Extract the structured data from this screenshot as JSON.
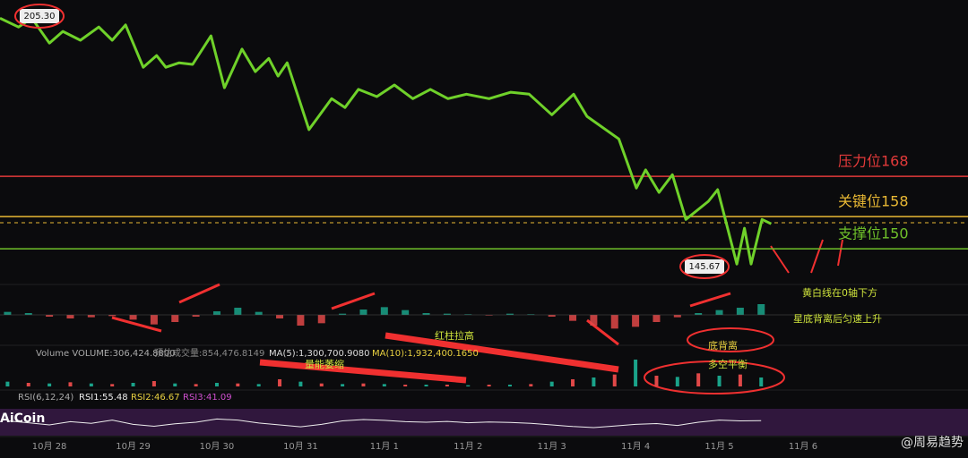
{
  "chart_data": {
    "type": "line",
    "color": "#6fd12a",
    "x": [
      -0.59,
      -0.37,
      -0.21,
      0,
      0.16,
      0.37,
      0.59,
      0.75,
      0.91,
      1.12,
      1.28,
      1.39,
      1.55,
      1.71,
      1.93,
      2.09,
      2.3,
      2.46,
      2.62,
      2.73,
      2.84,
      3.1,
      3.37,
      3.53,
      3.69,
      3.91,
      4.12,
      4.34,
      4.55,
      4.76,
      4.98,
      5.25,
      5.51,
      5.73,
      6.0,
      6.26,
      6.42,
      6.8,
      7.01,
      7.12,
      7.28,
      7.44,
      7.6,
      7.87,
      7.98,
      8.14,
      8.21,
      8.3,
      8.38,
      8.51,
      8.62
    ],
    "values": [
      207.3,
      205.1,
      207.3,
      201.1,
      204.0,
      201.8,
      205.1,
      201.8,
      205.6,
      195.1,
      198.0,
      195.1,
      196.2,
      195.8,
      202.9,
      190.0,
      199.6,
      194.0,
      197.3,
      192.9,
      196.2,
      179.6,
      187.3,
      185.1,
      189.6,
      187.8,
      190.7,
      187.3,
      189.6,
      187.3,
      188.4,
      187.3,
      188.9,
      188.4,
      183.3,
      188.4,
      182.9,
      177.3,
      165.1,
      169.6,
      164.0,
      168.4,
      157.3,
      161.8,
      164.7,
      151.8,
      146.2,
      155.1,
      146.2,
      157.3,
      156.2
    ],
    "xlim": [
      -0.59,
      10.97
    ],
    "ylim": [
      141.8,
      211.8
    ],
    "xticks": [
      {
        "value": 0,
        "label": "10月 28"
      },
      {
        "value": 1,
        "label": "10月 29"
      },
      {
        "value": 2,
        "label": "10月 30"
      },
      {
        "value": 3,
        "label": "10月 31"
      },
      {
        "value": 4,
        "label": "11月 1"
      },
      {
        "value": 5,
        "label": "11月 2"
      },
      {
        "value": 6,
        "label": "11月 3"
      },
      {
        "value": 7,
        "label": "11月 4"
      },
      {
        "value": 8,
        "label": "11月 5"
      },
      {
        "value": 9,
        "label": "11月 6"
      }
    ],
    "ref_lines": [
      {
        "value": 168,
        "label": "压力位168",
        "color": "#e43a3a"
      },
      {
        "value": 158,
        "label": "关键位158",
        "color": "#e8b834"
      },
      {
        "value": 150,
        "label": "支撑位150",
        "color": "#6fc02a"
      }
    ],
    "extremes": [
      {
        "value": 205.3,
        "label": "205.30"
      },
      {
        "value": 145.67,
        "label": "145.67"
      }
    ],
    "annotations": [
      "黄白线在0轴下方",
      "星底背离后匀速上升",
      "底背离",
      "多空平衡",
      "红柱拉高",
      "量能萎缩"
    ],
    "indicator_x": [
      -0.5,
      -0.25,
      0,
      0.25,
      0.5,
      0.75,
      1,
      1.25,
      1.5,
      1.75,
      2,
      2.25,
      2.5,
      2.75,
      3,
      3.25,
      3.5,
      3.75,
      4,
      4.25,
      4.5,
      4.75,
      5,
      5.25,
      5.5,
      5.75,
      6,
      6.25,
      6.5,
      6.75,
      7,
      7.25,
      7.5,
      7.75,
      8,
      8.25,
      8.5
    ],
    "macd": {
      "ylim": [
        -3,
        3
      ],
      "values": [
        0.5,
        0.3,
        -0.3,
        -0.6,
        -0.4,
        -0.2,
        -0.8,
        -1.6,
        -1.2,
        -0.3,
        0.6,
        1.2,
        0.5,
        -0.6,
        -1.8,
        -1.4,
        0.2,
        0.9,
        1.3,
        0.8,
        0.3,
        0.2,
        0.1,
        -0.1,
        0.2,
        0.1,
        -0.3,
        -1.0,
        -1.8,
        -2.3,
        -2.0,
        -1.2,
        -0.4,
        0.3,
        0.8,
        1.2,
        1.8
      ]
    },
    "volume": {
      "header": "Volume VOLUME:306,424.8800",
      "estimate": "预估成交量:854,476.8149",
      "ma5": "MA(5):1,300,700.9080",
      "ma10": "MA(10):1,932,400.1650",
      "ylim": [
        0,
        6000000
      ],
      "values": [
        800000,
        600000,
        500000,
        700000,
        500000,
        400000,
        600000,
        900000,
        500000,
        400000,
        600000,
        500000,
        400000,
        1200000,
        800000,
        500000,
        400000,
        500000,
        400000,
        300000,
        300000,
        300000,
        200000,
        300000,
        300000,
        400000,
        800000,
        1200000,
        1500000,
        2000000,
        4500000,
        1800000,
        1600000,
        2200000,
        1800000,
        2000000,
        1500000
      ]
    },
    "rsi": {
      "header": "RSI(6,12,24)",
      "rsi1": "RSI1:55.48",
      "rsi2": "RSI2:46.67",
      "rsi3": "RSI3:41.09",
      "ylim": [
        0,
        100
      ],
      "values": [
        55,
        48,
        40,
        52,
        46,
        58,
        42,
        35,
        44,
        50,
        62,
        58,
        47,
        40,
        33,
        42,
        55,
        60,
        57,
        52,
        50,
        53,
        48,
        51,
        49,
        46,
        40,
        34,
        30,
        36,
        42,
        45,
        38,
        50,
        58,
        55,
        56
      ]
    },
    "watermark": "AiCoin",
    "author": "@周易趋势"
  }
}
